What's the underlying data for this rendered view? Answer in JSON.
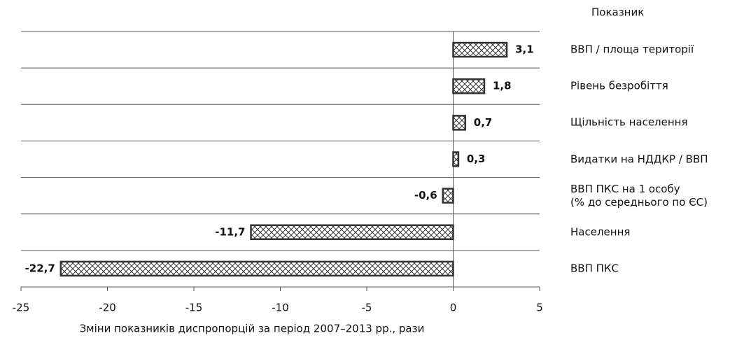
{
  "chart_data": {
    "type": "bar",
    "orientation": "horizontal",
    "legend_title": "Показник",
    "xlabel": "Зміни показників диспропорцій за період 2007–2013 рр., рази",
    "categories": [
      "ВВП / площа території",
      "Рівень безробіття",
      "Щільність населення",
      "Видатки на НДДКР / ВВП",
      "ВВП ПКС на 1 особу\n(% до середнього по ЄС)",
      "Населення",
      "ВВП ПКС"
    ],
    "values": [
      3.1,
      1.8,
      0.7,
      0.3,
      -0.6,
      -11.7,
      -22.7
    ],
    "value_labels": [
      "3,1",
      "1,8",
      "0,7",
      "0,3",
      "-0,6",
      "-11,7",
      "-22,7"
    ],
    "color": "#333333",
    "xlim": [
      -25,
      5
    ],
    "xticks": [
      -25,
      -20,
      -15,
      -10,
      -5,
      0,
      5
    ],
    "grid": true
  }
}
